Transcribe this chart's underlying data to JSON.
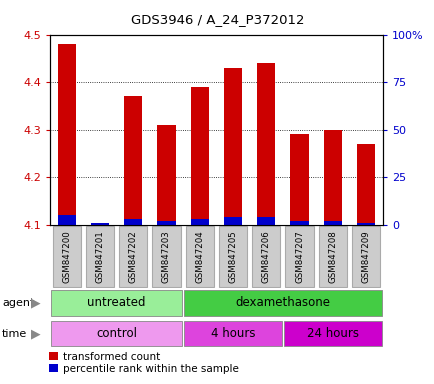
{
  "title": "GDS3946 / A_24_P372012",
  "samples": [
    "GSM847200",
    "GSM847201",
    "GSM847202",
    "GSM847203",
    "GSM847204",
    "GSM847205",
    "GSM847206",
    "GSM847207",
    "GSM847208",
    "GSM847209"
  ],
  "transformed_counts": [
    4.48,
    4.1,
    4.37,
    4.31,
    4.39,
    4.43,
    4.44,
    4.29,
    4.3,
    4.27
  ],
  "percentile_ranks": [
    5,
    1,
    3,
    2,
    3,
    4,
    4,
    2,
    2,
    1
  ],
  "ylim_left": [
    4.1,
    4.5
  ],
  "ylim_right": [
    0,
    100
  ],
  "yticks_left": [
    4.1,
    4.2,
    4.3,
    4.4,
    4.5
  ],
  "yticks_right": [
    0,
    25,
    50,
    75,
    100
  ],
  "ytick_labels_right": [
    "0",
    "25",
    "50",
    "75",
    "100%"
  ],
  "bar_color_red": "#cc0000",
  "bar_color_blue": "#0000cc",
  "agent_groups": [
    {
      "label": "untreated",
      "start": 0,
      "end": 4,
      "color": "#99ee99"
    },
    {
      "label": "dexamethasone",
      "start": 4,
      "end": 10,
      "color": "#44cc44"
    }
  ],
  "time_groups": [
    {
      "label": "control",
      "start": 0,
      "end": 4,
      "color": "#ee99ee"
    },
    {
      "label": "4 hours",
      "start": 4,
      "end": 7,
      "color": "#dd44dd"
    },
    {
      "label": "24 hours",
      "start": 7,
      "end": 10,
      "color": "#cc00cc"
    }
  ],
  "legend_red_label": "transformed count",
  "legend_blue_label": "percentile rank within the sample",
  "grid_color": "#000000",
  "tick_label_color_left": "#cc0000",
  "tick_label_color_right": "#0000cc",
  "bar_width": 0.55,
  "base_value": 4.1,
  "sample_box_color": "#cccccc",
  "sample_box_edge": "#aaaaaa"
}
